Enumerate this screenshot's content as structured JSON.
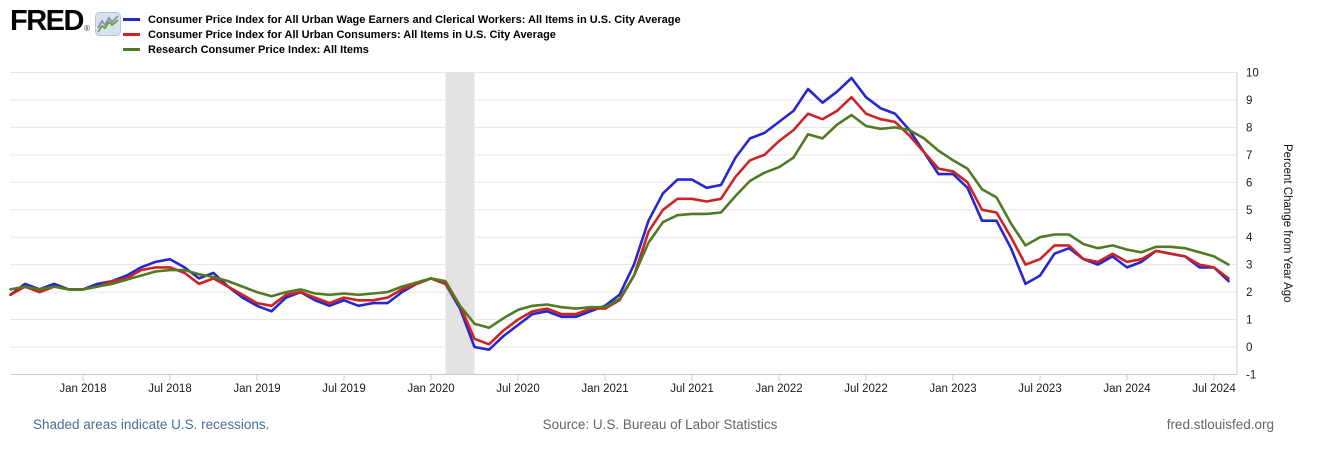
{
  "brand": {
    "logo_text": "FRED",
    "registered_mark": "®",
    "logo_chart_icon": "mini-line-chart-icon"
  },
  "legend": [
    {
      "label": "Consumer Price Index for All Urban Wage Earners and Clerical Workers: All Items in U.S. City Average",
      "color": "#2727cf"
    },
    {
      "label": "Consumer Price Index for All Urban Consumers: All Items in U.S. City Average",
      "color": "#cc2424"
    },
    {
      "label": "Research Consumer Price Index: All Items",
      "color": "#527a22"
    }
  ],
  "y_axis": {
    "title": "Percent Change from Year Ago",
    "min": -1,
    "max": 10,
    "ticks": [
      10,
      9,
      8,
      7,
      6,
      5,
      4,
      3,
      2,
      1,
      0,
      -1
    ]
  },
  "x_axis": {
    "tick_labels": [
      "Jan 2018",
      "Jul 2018",
      "Jan 2019",
      "Jul 2019",
      "Jan 2020",
      "Jul 2020",
      "Jan 2021",
      "Jul 2021",
      "Jan 2022",
      "Jul 2022",
      "Jan 2023",
      "Jul 2023",
      "Jan 2024",
      "Jul 2024"
    ]
  },
  "footer": {
    "recession_note": "Shaded areas indicate U.S. recessions.",
    "source": "Source: U.S. Bureau of Labor Statistics",
    "site": "fred.stlouisfed.org"
  },
  "chart_data": {
    "type": "line",
    "frequency": "monthly",
    "start_month": "2017-08",
    "end_month": "2024-08",
    "ylabel": "Percent Change from Year Ago",
    "ylim": [
      -1,
      10
    ],
    "grid": "horizontal",
    "legend_position": "top-left",
    "recession_band": {
      "from": "2020-02",
      "to": "2020-04",
      "color": "#e3e3e3"
    },
    "series": [
      {
        "name": "Consumer Price Index for All Urban Wage Earners and Clerical Workers: All Items in U.S. City Average",
        "short_name": "cpi-w",
        "color": "#2727cf",
        "values": [
          1.9,
          2.3,
          2.1,
          2.3,
          2.1,
          2.1,
          2.3,
          2.4,
          2.6,
          2.9,
          3.1,
          3.2,
          2.9,
          2.5,
          2.7,
          2.2,
          1.8,
          1.5,
          1.3,
          1.8,
          2.0,
          1.7,
          1.5,
          1.7,
          1.5,
          1.6,
          1.6,
          2.0,
          2.3,
          2.5,
          2.3,
          1.4,
          0.0,
          -0.1,
          0.4,
          0.8,
          1.2,
          1.3,
          1.1,
          1.1,
          1.3,
          1.5,
          1.9,
          3.0,
          4.6,
          5.6,
          6.1,
          6.1,
          5.8,
          5.9,
          6.9,
          7.6,
          7.8,
          8.2,
          8.6,
          9.4,
          8.9,
          9.3,
          9.8,
          9.1,
          8.7,
          8.5,
          7.9,
          7.1,
          6.3,
          6.3,
          5.8,
          4.6,
          4.6,
          3.6,
          2.3,
          2.6,
          3.4,
          3.6,
          3.2,
          3.0,
          3.3,
          2.9,
          3.1,
          3.5,
          3.4,
          3.3,
          2.9,
          2.9,
          2.4
        ]
      },
      {
        "name": "Consumer Price Index for All Urban Consumers: All Items in U.S. City Average",
        "short_name": "cpi-u",
        "color": "#cc2424",
        "values": [
          1.9,
          2.2,
          2.0,
          2.2,
          2.1,
          2.1,
          2.2,
          2.4,
          2.5,
          2.8,
          2.9,
          2.9,
          2.7,
          2.3,
          2.5,
          2.2,
          1.9,
          1.6,
          1.5,
          1.9,
          2.0,
          1.8,
          1.6,
          1.8,
          1.7,
          1.7,
          1.8,
          2.1,
          2.3,
          2.5,
          2.3,
          1.5,
          0.3,
          0.1,
          0.6,
          1.0,
          1.3,
          1.4,
          1.2,
          1.2,
          1.4,
          1.4,
          1.7,
          2.6,
          4.2,
          5.0,
          5.4,
          5.4,
          5.3,
          5.4,
          6.2,
          6.8,
          7.0,
          7.5,
          7.9,
          8.5,
          8.3,
          8.6,
          9.1,
          8.5,
          8.3,
          8.2,
          7.7,
          7.1,
          6.5,
          6.4,
          6.0,
          5.0,
          4.9,
          4.0,
          3.0,
          3.2,
          3.7,
          3.7,
          3.2,
          3.1,
          3.4,
          3.1,
          3.2,
          3.5,
          3.4,
          3.3,
          3.0,
          2.9,
          2.5
        ]
      },
      {
        "name": "Research Consumer Price Index: All Items",
        "short_name": "research-cpi",
        "color": "#527a22",
        "values": [
          2.1,
          2.2,
          2.1,
          2.2,
          2.1,
          2.1,
          2.2,
          2.3,
          2.45,
          2.6,
          2.75,
          2.8,
          2.8,
          2.65,
          2.55,
          2.4,
          2.2,
          2.0,
          1.85,
          2.0,
          2.1,
          1.95,
          1.9,
          1.95,
          1.9,
          1.95,
          2.0,
          2.2,
          2.35,
          2.5,
          2.4,
          1.5,
          0.85,
          0.7,
          1.05,
          1.35,
          1.5,
          1.55,
          1.45,
          1.4,
          1.45,
          1.45,
          1.75,
          2.6,
          3.8,
          4.55,
          4.8,
          4.85,
          4.85,
          4.9,
          5.5,
          6.05,
          6.35,
          6.55,
          6.9,
          7.75,
          7.6,
          8.1,
          8.45,
          8.05,
          7.95,
          8.0,
          7.9,
          7.6,
          7.15,
          6.8,
          6.5,
          5.75,
          5.45,
          4.5,
          3.7,
          4.0,
          4.1,
          4.1,
          3.75,
          3.6,
          3.7,
          3.55,
          3.45,
          3.65,
          3.65,
          3.6,
          3.45,
          3.3,
          3.0
        ]
      }
    ]
  }
}
